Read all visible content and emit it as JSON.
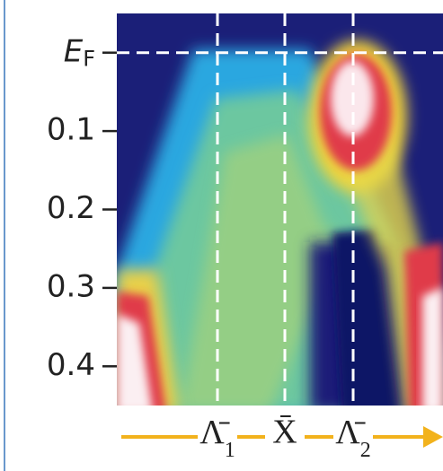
{
  "chart_data": {
    "type": "heatmap",
    "ylim": [
      -0.05,
      0.45
    ],
    "yticks": [
      {
        "value": 0,
        "label": "EF"
      },
      0.1,
      0.2,
      0.3,
      0.4
    ],
    "x_labels": [
      "Λ̄1",
      "X̄",
      "Λ̄2"
    ]
  }
}
